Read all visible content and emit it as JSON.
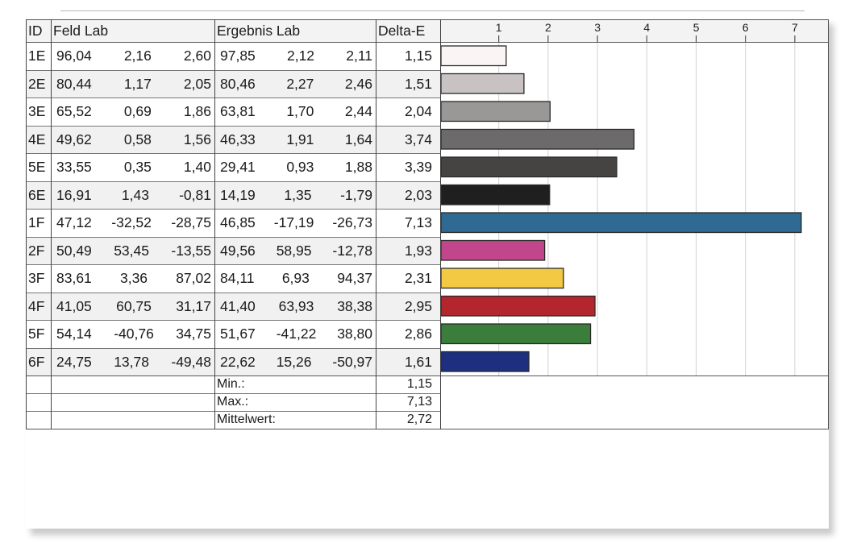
{
  "chart_data": {
    "type": "bar",
    "orientation": "horizontal",
    "table_headers": {
      "id": "ID",
      "feld": "Feld Lab",
      "ergebnis": "Ergebnis Lab",
      "delta": "Delta-E"
    },
    "x_ticks": [
      "1",
      "2",
      "3",
      "4",
      "5",
      "6",
      "7"
    ],
    "xlim": [
      0,
      7.3
    ],
    "rows": [
      {
        "id": "1E",
        "feld": [
          "96,04",
          "2,16",
          "2,60"
        ],
        "ergebnis": [
          "97,85",
          "2,12",
          "2,11"
        ],
        "delta_label": "1,15",
        "value": 1.15,
        "color": "#fbf4f4"
      },
      {
        "id": "2E",
        "feld": [
          "80,44",
          "1,17",
          "2,05"
        ],
        "ergebnis": [
          "80,46",
          "2,27",
          "2,46"
        ],
        "delta_label": "1,51",
        "value": 1.51,
        "color": "#c8c2c3"
      },
      {
        "id": "3E",
        "feld": [
          "65,52",
          "0,69",
          "1,86"
        ],
        "ergebnis": [
          "63,81",
          "1,70",
          "2,44"
        ],
        "delta_label": "2,04",
        "value": 2.04,
        "color": "#9a9896"
      },
      {
        "id": "4E",
        "feld": [
          "49,62",
          "0,58",
          "1,56"
        ],
        "ergebnis": [
          "46,33",
          "1,91",
          "1,64"
        ],
        "delta_label": "3,74",
        "value": 3.74,
        "color": "#6c6a6b"
      },
      {
        "id": "5E",
        "feld": [
          "33,55",
          "0,35",
          "1,40"
        ],
        "ergebnis": [
          "29,41",
          "0,93",
          "1,88"
        ],
        "delta_label": "3,39",
        "value": 3.39,
        "color": "#454443"
      },
      {
        "id": "6E",
        "feld": [
          "16,91",
          "1,43",
          "-0,81"
        ],
        "ergebnis": [
          "14,19",
          "1,35",
          "-1,79"
        ],
        "delta_label": "2,03",
        "value": 2.03,
        "color": "#1f1f20"
      },
      {
        "id": "1F",
        "feld": [
          "47,12",
          "-32,52",
          "-28,75"
        ],
        "ergebnis": [
          "46,85",
          "-17,19",
          "-26,73"
        ],
        "delta_label": "7,13",
        "value": 7.13,
        "color": "#2e6a92"
      },
      {
        "id": "2F",
        "feld": [
          "50,49",
          "53,45",
          "-13,55"
        ],
        "ergebnis": [
          "49,56",
          "58,95",
          "-12,78"
        ],
        "delta_label": "1,93",
        "value": 1.93,
        "color": "#c2468c"
      },
      {
        "id": "3F",
        "feld": [
          "83,61",
          "3,36",
          "87,02"
        ],
        "ergebnis": [
          "84,11",
          "6,93",
          "94,37"
        ],
        "delta_label": "2,31",
        "value": 2.31,
        "color": "#f3c842"
      },
      {
        "id": "4F",
        "feld": [
          "41,05",
          "60,75",
          "31,17"
        ],
        "ergebnis": [
          "41,40",
          "63,93",
          "38,38"
        ],
        "delta_label": "2,95",
        "value": 2.95,
        "color": "#b3262e"
      },
      {
        "id": "5F",
        "feld": [
          "54,14",
          "-40,76",
          "34,75"
        ],
        "ergebnis": [
          "51,67",
          "-41,22",
          "38,80"
        ],
        "delta_label": "2,86",
        "value": 2.86,
        "color": "#3b7d3a"
      },
      {
        "id": "6F",
        "feld": [
          "24,75",
          "13,78",
          "-49,48"
        ],
        "ergebnis": [
          "22,62",
          "15,26",
          "-50,97"
        ],
        "delta_label": "1,61",
        "value": 1.61,
        "color": "#1d2f7e"
      }
    ],
    "summary": [
      {
        "label": "Min.:",
        "value": "1,15"
      },
      {
        "label": "Max.:",
        "value": "7,13"
      },
      {
        "label": "Mittelwert:",
        "value": "2,72"
      }
    ]
  }
}
